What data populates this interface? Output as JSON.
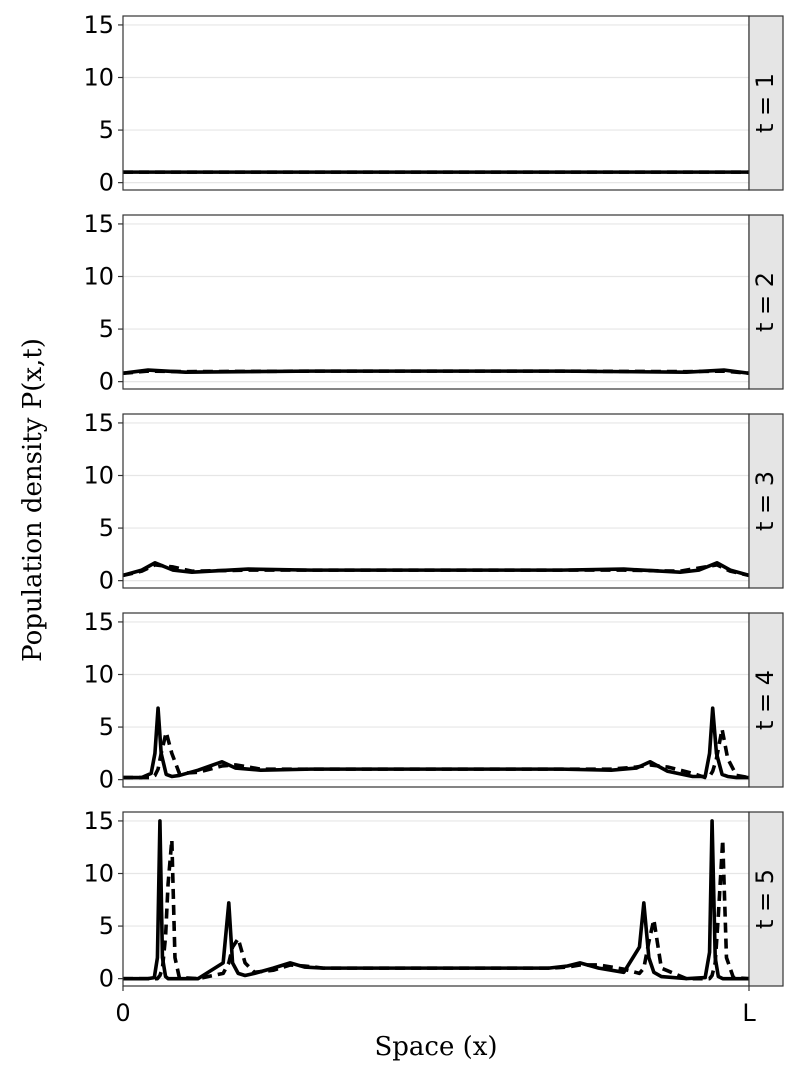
{
  "shared_axes": {
    "x_label": "Space (x)",
    "y_label": "Population density P(x,t)"
  },
  "chart_data": [
    {
      "type": "line",
      "facet_label": "t = 1",
      "xlim": [
        0,
        1
      ],
      "ylim": [
        -0.7,
        15.85
      ],
      "yticks": [
        0,
        5,
        10,
        15
      ],
      "grid": true,
      "x": [
        0,
        0.5,
        1
      ],
      "series": [
        {
          "color": "#000000",
          "dash": false,
          "values": [
            1,
            1,
            1
          ]
        },
        {
          "color": "#000000",
          "dash": true,
          "values": [
            1,
            1,
            1
          ]
        }
      ]
    },
    {
      "type": "line",
      "facet_label": "t = 2",
      "xlim": [
        0,
        1
      ],
      "ylim": [
        -0.7,
        15.85
      ],
      "yticks": [
        0,
        5,
        10,
        15
      ],
      "grid": true,
      "x": [
        0,
        0.04,
        0.1,
        0.3,
        0.5,
        0.7,
        0.9,
        0.96,
        1
      ],
      "series": [
        {
          "color": "#000000",
          "dash": false,
          "values": [
            0.8,
            1.1,
            0.9,
            1,
            1,
            1,
            0.9,
            1.1,
            0.8
          ]
        },
        {
          "color": "#000000",
          "dash": true,
          "values": [
            0.8,
            1,
            0.95,
            1,
            1,
            1,
            0.95,
            1,
            0.8
          ]
        }
      ]
    },
    {
      "type": "line",
      "facet_label": "t = 3",
      "xlim": [
        0,
        1
      ],
      "ylim": [
        -0.7,
        15.85
      ],
      "yticks": [
        0,
        5,
        10,
        15
      ],
      "grid": true,
      "x": [
        0,
        0.03,
        0.051,
        0.08,
        0.11,
        0.2,
        0.3,
        0.5,
        0.7,
        0.8,
        0.89,
        0.92,
        0.949,
        0.97,
        1
      ],
      "series": [
        {
          "color": "#000000",
          "dash": false,
          "values": [
            0.5,
            1,
            1.7,
            1,
            0.8,
            1.1,
            1,
            1,
            1,
            1.1,
            0.8,
            1,
            1.7,
            1,
            0.5
          ]
        },
        {
          "color": "#000000",
          "dash": true,
          "values": [
            0.5,
            0.9,
            1.5,
            1.3,
            0.9,
            1,
            1,
            1,
            1,
            1,
            0.9,
            1.2,
            1.5,
            0.9,
            0.5
          ]
        }
      ]
    },
    {
      "type": "line",
      "facet_label": "t = 4",
      "xlim": [
        0,
        1
      ],
      "ylim": [
        -0.7,
        15.85
      ],
      "yticks": [
        0,
        5,
        10,
        15
      ],
      "grid": true,
      "x": [
        0,
        0.03,
        0.045,
        0.051,
        0.056,
        0.061,
        0.069,
        0.078,
        0.09,
        0.12,
        0.158,
        0.18,
        0.22,
        0.3,
        0.5,
        0.7,
        0.78,
        0.82,
        0.842,
        0.87,
        0.91,
        0.93,
        0.937,
        0.942,
        0.948,
        0.957,
        0.966,
        0.98,
        1
      ],
      "series": [
        {
          "color": "#000000",
          "dash": false,
          "values": [
            0.2,
            0.2,
            0.6,
            2.5,
            6.8,
            2.5,
            0.5,
            0.3,
            0.4,
            0.9,
            1.7,
            1.1,
            0.9,
            1,
            1,
            1,
            0.9,
            1.1,
            1.7,
            0.8,
            0.3,
            0.3,
            2.5,
            6.8,
            2.5,
            0.5,
            0.3,
            0.2,
            0.2
          ]
        },
        {
          "color": "#000000",
          "dash": true,
          "values": [
            0.2,
            0.2,
            0.2,
            0.4,
            1,
            2.5,
            4.5,
            2.5,
            0.6,
            0.7,
            1.3,
            1.4,
            1,
            1,
            1,
            1,
            1,
            1.2,
            1.4,
            1.2,
            0.6,
            0.2,
            0.3,
            0.8,
            2,
            4.8,
            2,
            0.4,
            0.2
          ]
        }
      ]
    },
    {
      "type": "line",
      "facet_label": "t = 5",
      "xlim": [
        0,
        1
      ],
      "ylim": [
        -0.7,
        15.85
      ],
      "yticks": [
        0,
        5,
        10,
        15
      ],
      "grid": true,
      "xticks": [
        0,
        {
          "value": 1,
          "label": "L"
        }
      ],
      "x": [
        0,
        0.04,
        0.05,
        0.055,
        0.059,
        0.063,
        0.068,
        0.072,
        0.078,
        0.083,
        0.09,
        0.12,
        0.16,
        0.169,
        0.175,
        0.184,
        0.195,
        0.21,
        0.24,
        0.267,
        0.29,
        0.32,
        0.5,
        0.68,
        0.71,
        0.73,
        0.76,
        0.8,
        0.825,
        0.832,
        0.84,
        0.848,
        0.86,
        0.9,
        0.93,
        0.937,
        0.941,
        0.946,
        0.951,
        0.958,
        0.964,
        0.975,
        1
      ],
      "series": [
        {
          "color": "#000000",
          "dash": false,
          "values": [
            0,
            0,
            0.1,
            2,
            15,
            2,
            0.2,
            0,
            0,
            0,
            0,
            0,
            1.5,
            7.2,
            1.5,
            0.5,
            0.3,
            0.5,
            1,
            1.5,
            1.1,
            1,
            1,
            1,
            1.2,
            1.5,
            1,
            0.6,
            3,
            7.2,
            2,
            0.6,
            0.2,
            0,
            0.1,
            2.5,
            15,
            2,
            0.2,
            0,
            0,
            0,
            0
          ]
        },
        {
          "color": "#000000",
          "dash": true,
          "values": [
            0,
            0,
            0,
            0,
            0.3,
            1,
            4,
            9,
            13.2,
            2,
            0.1,
            0,
            0.5,
            1.5,
            3,
            3.8,
            1.5,
            0.6,
            0.8,
            1.3,
            1.2,
            1,
            1,
            1,
            1.1,
            1.3,
            1.3,
            0.9,
            0.5,
            1,
            3.5,
            5.6,
            1,
            0,
            0,
            0,
            0.3,
            1.5,
            6,
            13.2,
            2,
            0.1,
            0
          ]
        }
      ]
    }
  ]
}
